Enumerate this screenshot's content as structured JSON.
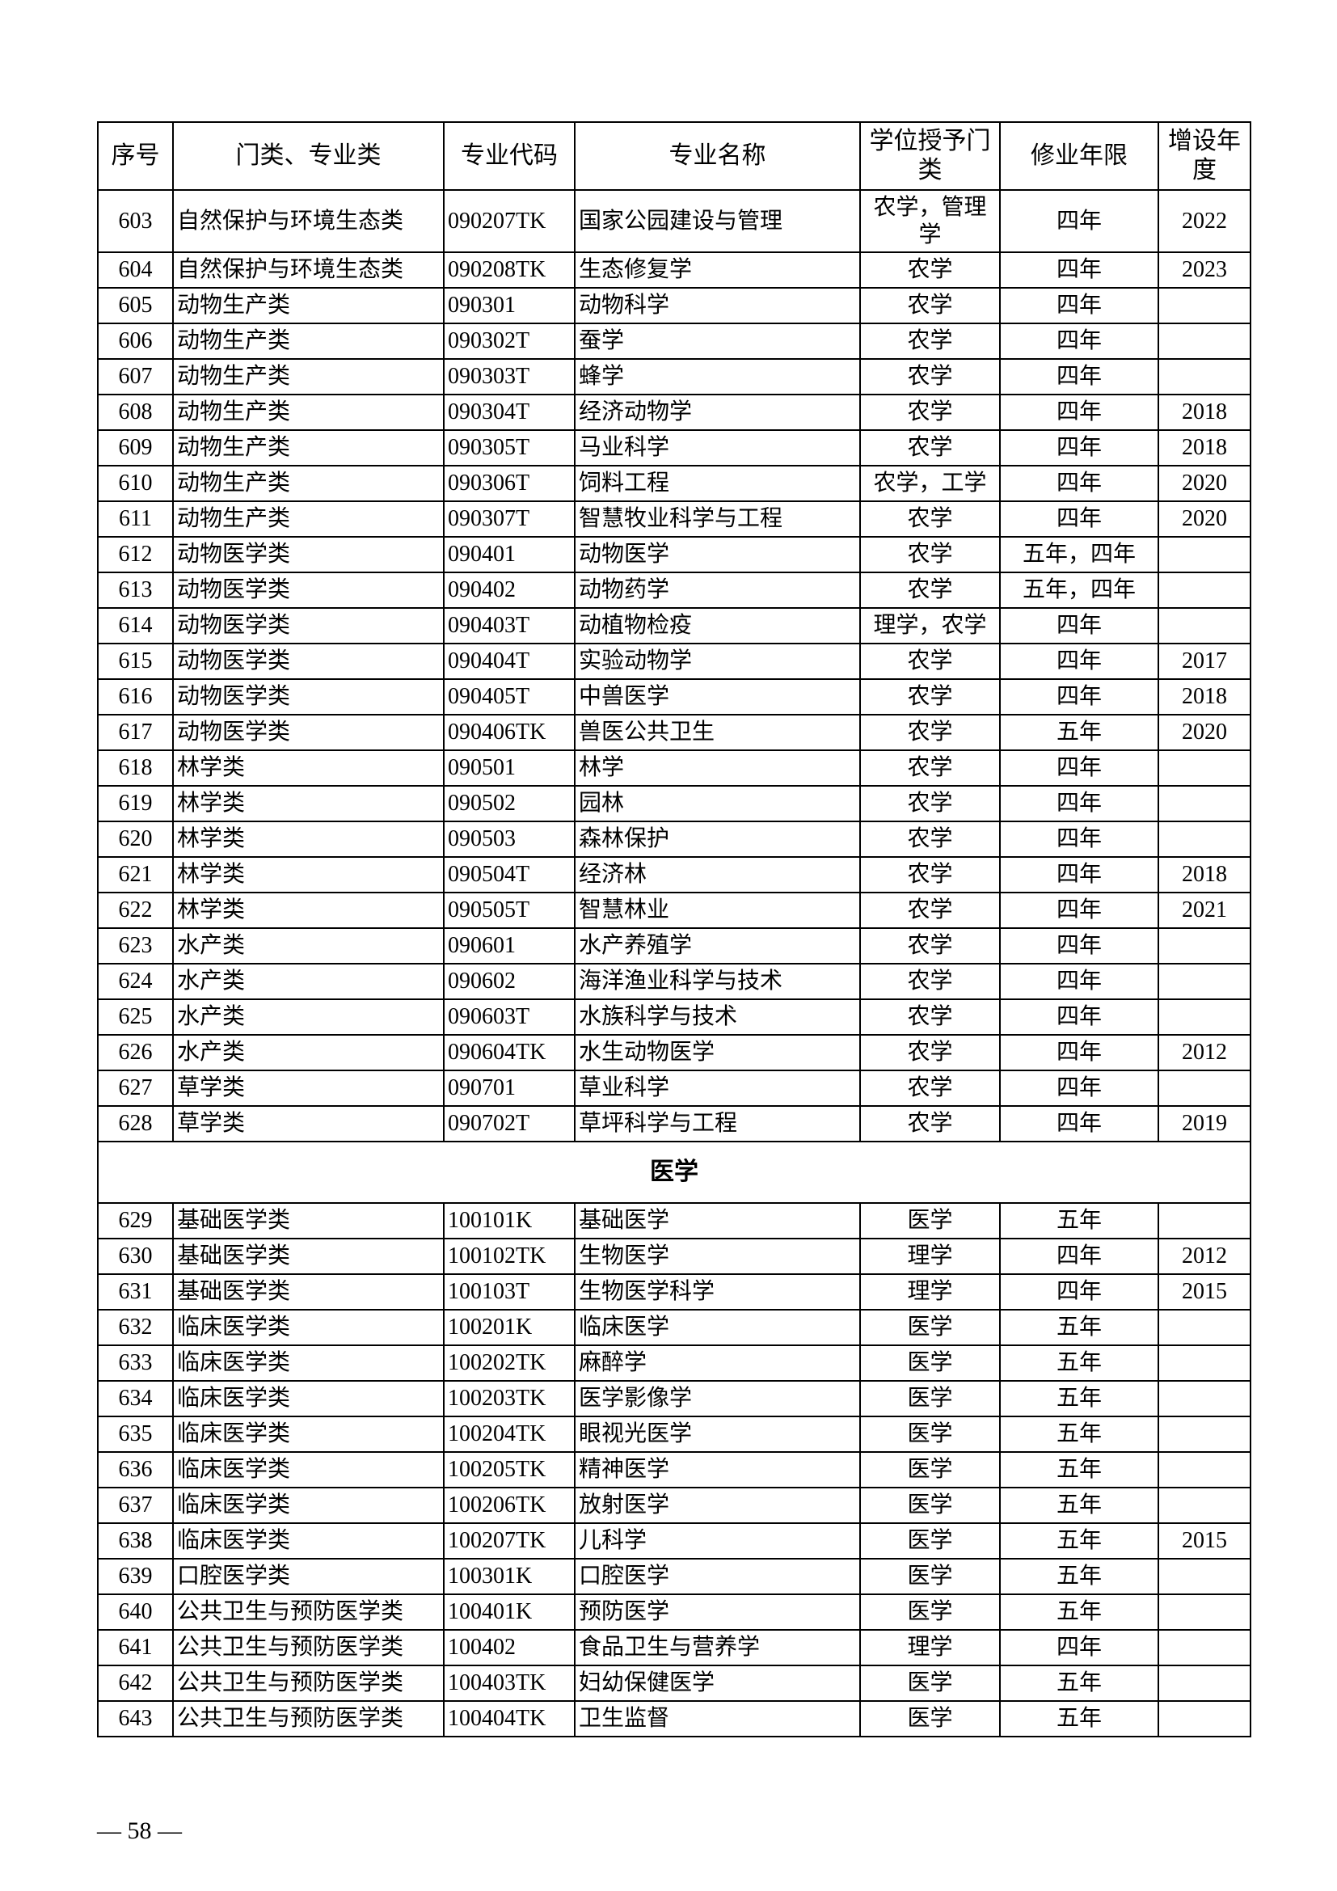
{
  "headers": [
    "序号",
    "门类、专业类",
    "专业代码",
    "专业名称",
    "学位授予门类",
    "修业年限",
    "增设年度"
  ],
  "rows_a": [
    [
      "603",
      "自然保护与环境生态类",
      "090207TK",
      "国家公园建设与管理",
      "农学，管理学",
      "四年",
      "2022"
    ],
    [
      "604",
      "自然保护与环境生态类",
      "090208TK",
      "生态修复学",
      "农学",
      "四年",
      "2023"
    ],
    [
      "605",
      "动物生产类",
      "090301",
      "动物科学",
      "农学",
      "四年",
      ""
    ],
    [
      "606",
      "动物生产类",
      "090302T",
      "蚕学",
      "农学",
      "四年",
      ""
    ],
    [
      "607",
      "动物生产类",
      "090303T",
      "蜂学",
      "农学",
      "四年",
      ""
    ],
    [
      "608",
      "动物生产类",
      "090304T",
      "经济动物学",
      "农学",
      "四年",
      "2018"
    ],
    [
      "609",
      "动物生产类",
      "090305T",
      "马业科学",
      "农学",
      "四年",
      "2018"
    ],
    [
      "610",
      "动物生产类",
      "090306T",
      "饲料工程",
      "农学，工学",
      "四年",
      "2020"
    ],
    [
      "611",
      "动物生产类",
      "090307T",
      "智慧牧业科学与工程",
      "农学",
      "四年",
      "2020"
    ],
    [
      "612",
      "动物医学类",
      "090401",
      "动物医学",
      "农学",
      "五年，四年",
      ""
    ],
    [
      "613",
      "动物医学类",
      "090402",
      "动物药学",
      "农学",
      "五年，四年",
      ""
    ],
    [
      "614",
      "动物医学类",
      "090403T",
      "动植物检疫",
      "理学，农学",
      "四年",
      ""
    ],
    [
      "615",
      "动物医学类",
      "090404T",
      "实验动物学",
      "农学",
      "四年",
      "2017"
    ],
    [
      "616",
      "动物医学类",
      "090405T",
      "中兽医学",
      "农学",
      "四年",
      "2018"
    ],
    [
      "617",
      "动物医学类",
      "090406TK",
      "兽医公共卫生",
      "农学",
      "五年",
      "2020"
    ],
    [
      "618",
      "林学类",
      "090501",
      "林学",
      "农学",
      "四年",
      ""
    ],
    [
      "619",
      "林学类",
      "090502",
      "园林",
      "农学",
      "四年",
      ""
    ],
    [
      "620",
      "林学类",
      "090503",
      "森林保护",
      "农学",
      "四年",
      ""
    ],
    [
      "621",
      "林学类",
      "090504T",
      "经济林",
      "农学",
      "四年",
      "2018"
    ],
    [
      "622",
      "林学类",
      "090505T",
      "智慧林业",
      "农学",
      "四年",
      "2021"
    ],
    [
      "623",
      "水产类",
      "090601",
      "水产养殖学",
      "农学",
      "四年",
      ""
    ],
    [
      "624",
      "水产类",
      "090602",
      "海洋渔业科学与技术",
      "农学",
      "四年",
      ""
    ],
    [
      "625",
      "水产类",
      "090603T",
      "水族科学与技术",
      "农学",
      "四年",
      ""
    ],
    [
      "626",
      "水产类",
      "090604TK",
      "水生动物医学",
      "农学",
      "四年",
      "2012"
    ],
    [
      "627",
      "草学类",
      "090701",
      "草业科学",
      "农学",
      "四年",
      ""
    ],
    [
      "628",
      "草学类",
      "090702T",
      "草坪科学与工程",
      "农学",
      "四年",
      "2019"
    ]
  ],
  "section": "医学",
  "rows_b": [
    [
      "629",
      "基础医学类",
      "100101K",
      "基础医学",
      "医学",
      "五年",
      ""
    ],
    [
      "630",
      "基础医学类",
      "100102TK",
      "生物医学",
      "理学",
      "四年",
      "2012"
    ],
    [
      "631",
      "基础医学类",
      "100103T",
      "生物医学科学",
      "理学",
      "四年",
      "2015"
    ],
    [
      "632",
      "临床医学类",
      "100201K",
      "临床医学",
      "医学",
      "五年",
      ""
    ],
    [
      "633",
      "临床医学类",
      "100202TK",
      "麻醉学",
      "医学",
      "五年",
      ""
    ],
    [
      "634",
      "临床医学类",
      "100203TK",
      "医学影像学",
      "医学",
      "五年",
      ""
    ],
    [
      "635",
      "临床医学类",
      "100204TK",
      "眼视光医学",
      "医学",
      "五年",
      ""
    ],
    [
      "636",
      "临床医学类",
      "100205TK",
      "精神医学",
      "医学",
      "五年",
      ""
    ],
    [
      "637",
      "临床医学类",
      "100206TK",
      "放射医学",
      "医学",
      "五年",
      ""
    ],
    [
      "638",
      "临床医学类",
      "100207TK",
      "儿科学",
      "医学",
      "五年",
      "2015"
    ],
    [
      "639",
      "口腔医学类",
      "100301K",
      "口腔医学",
      "医学",
      "五年",
      ""
    ],
    [
      "640",
      "公共卫生与预防医学类",
      "100401K",
      "预防医学",
      "医学",
      "五年",
      ""
    ],
    [
      "641",
      "公共卫生与预防医学类",
      "100402",
      "食品卫生与营养学",
      "理学",
      "四年",
      ""
    ],
    [
      "642",
      "公共卫生与预防医学类",
      "100403TK",
      "妇幼保健医学",
      "医学",
      "五年",
      ""
    ],
    [
      "643",
      "公共卫生与预防医学类",
      "100404TK",
      "卫生监督",
      "医学",
      "五年",
      ""
    ]
  ],
  "page_number": "— 58 —"
}
